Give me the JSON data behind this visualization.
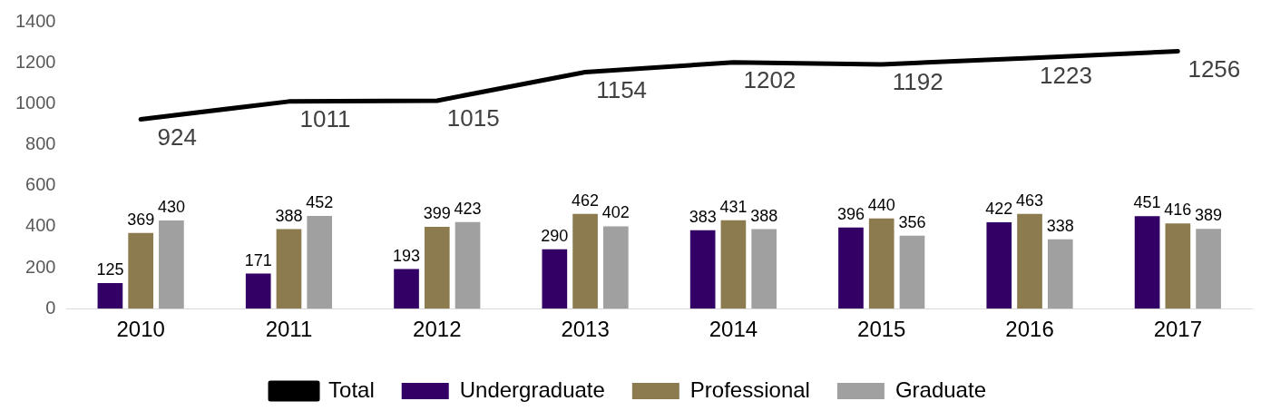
{
  "chart_data": {
    "type": "bar",
    "categories": [
      "2010",
      "2011",
      "2012",
      "2013",
      "2014",
      "2015",
      "2016",
      "2017"
    ],
    "series": [
      {
        "name": "Undergraduate",
        "color": "#330066",
        "values": [
          125,
          171,
          193,
          290,
          383,
          396,
          422,
          451
        ]
      },
      {
        "name": "Professional",
        "color": "#8b7b4e",
        "values": [
          369,
          388,
          399,
          462,
          431,
          440,
          463,
          416
        ]
      },
      {
        "name": "Graduate",
        "color": "#a0a0a0",
        "values": [
          430,
          452,
          423,
          402,
          388,
          356,
          338,
          389
        ]
      },
      {
        "name": "Total",
        "type": "line",
        "color": "#000000",
        "values": [
          924,
          1011,
          1015,
          1154,
          1202,
          1192,
          1223,
          1256
        ]
      }
    ],
    "ylim": [
      0,
      1400
    ],
    "yticks": [
      0,
      200,
      400,
      600,
      800,
      1000,
      1200,
      1400
    ],
    "data_labels": true,
    "legend": "bottom",
    "grid": false,
    "marker": "none"
  }
}
